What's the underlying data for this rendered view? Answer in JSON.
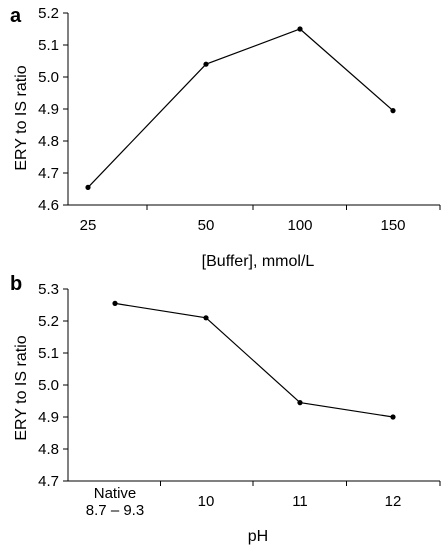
{
  "chart_data": [
    {
      "type": "line",
      "panel": "a",
      "categories": [
        "25",
        "50",
        "100",
        "150"
      ],
      "series": [
        {
          "values": [
            4.655,
            5.04,
            5.15,
            4.895
          ]
        }
      ],
      "xlabel": "[Buffer], mmol/L",
      "ylabel": "ERY to IS ratio",
      "ylim": [
        4.6,
        5.2
      ],
      "yticks": [
        "4.6",
        "4.7",
        "4.8",
        "4.9",
        "5.0",
        "5.1",
        "5.2"
      ],
      "grid": false
    },
    {
      "type": "line",
      "panel": "b",
      "categories": [
        [
          "Native",
          "8.7 – 9.3"
        ],
        [
          "10"
        ],
        [
          "11"
        ],
        [
          "12"
        ]
      ],
      "series": [
        {
          "values": [
            5.255,
            5.21,
            4.945,
            4.9
          ]
        }
      ],
      "xlabel": "pH",
      "ylabel": "ERY to IS ratio",
      "ylim": [
        4.7,
        5.3
      ],
      "yticks": [
        "4.7",
        "4.8",
        "4.9",
        "5.0",
        "5.1",
        "5.2",
        "5.3"
      ],
      "grid": false
    }
  ]
}
